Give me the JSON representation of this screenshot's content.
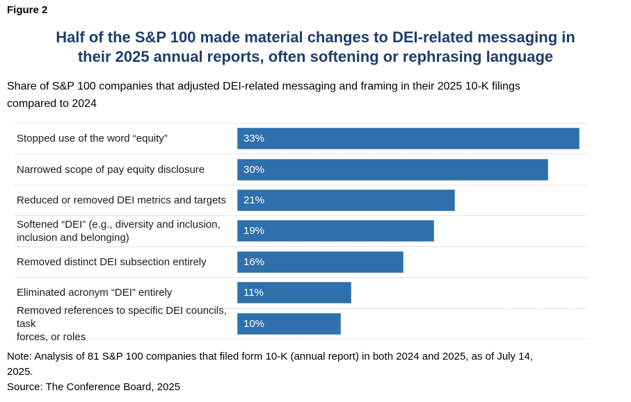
{
  "figure_label": "Figure 2",
  "title": "Half of the S&P 100 made material changes to DEI-related messaging in\ntheir 2025 annual reports, often softening or rephrasing language",
  "subtitle": "Share of S&P 100 companies that adjusted DEI-related messaging and framing in their 2025 10-K filings\ncompared to 2024",
  "note": "Note: Analysis of 81 S&P 100 companies that filed form 10-K (annual report) in both 2024 and 2025, as of July 14,\n2025.",
  "source": "Source: The Conference Board, 2025",
  "colors": {
    "bar": "#2e6fac",
    "title": "#1e3c6e",
    "bar_value_text": "#ffffff",
    "label_text": "#1a1a1a",
    "separator": "#c9c9c9",
    "background": "#ffffff"
  },
  "chart_data": {
    "type": "bar",
    "orientation": "horizontal",
    "title": "Half of the S&P 100 made material changes to DEI-related messaging in their 2025 annual reports, often softening or rephrasing language",
    "subtitle": "Share of S&P 100 companies that adjusted DEI-related messaging and framing in their 2025 10-K filings compared to 2024",
    "categories": [
      "Stopped use of the word “equity”",
      "Narrowed scope of pay equity disclosure",
      "Reduced or removed DEI metrics and targets",
      "Softened “DEI” (e.g., diversity and inclusion,\ninclusion and belonging)",
      "Removed distinct DEI subsection entirely",
      "Eliminated acronym “DEI” entirely",
      "Removed references to specific DEI councils, task\nforces, or roles"
    ],
    "values": [
      33,
      30,
      21,
      19,
      16,
      11,
      10
    ],
    "value_labels": [
      "33%",
      "30%",
      "21%",
      "19%",
      "16%",
      "11%",
      "10%"
    ],
    "xlabel": "",
    "ylabel": "",
    "xlim": [
      0,
      33.8
    ],
    "grid": "dotted horizontal row separators",
    "legend": "none",
    "value_label_position": "inside-left"
  }
}
